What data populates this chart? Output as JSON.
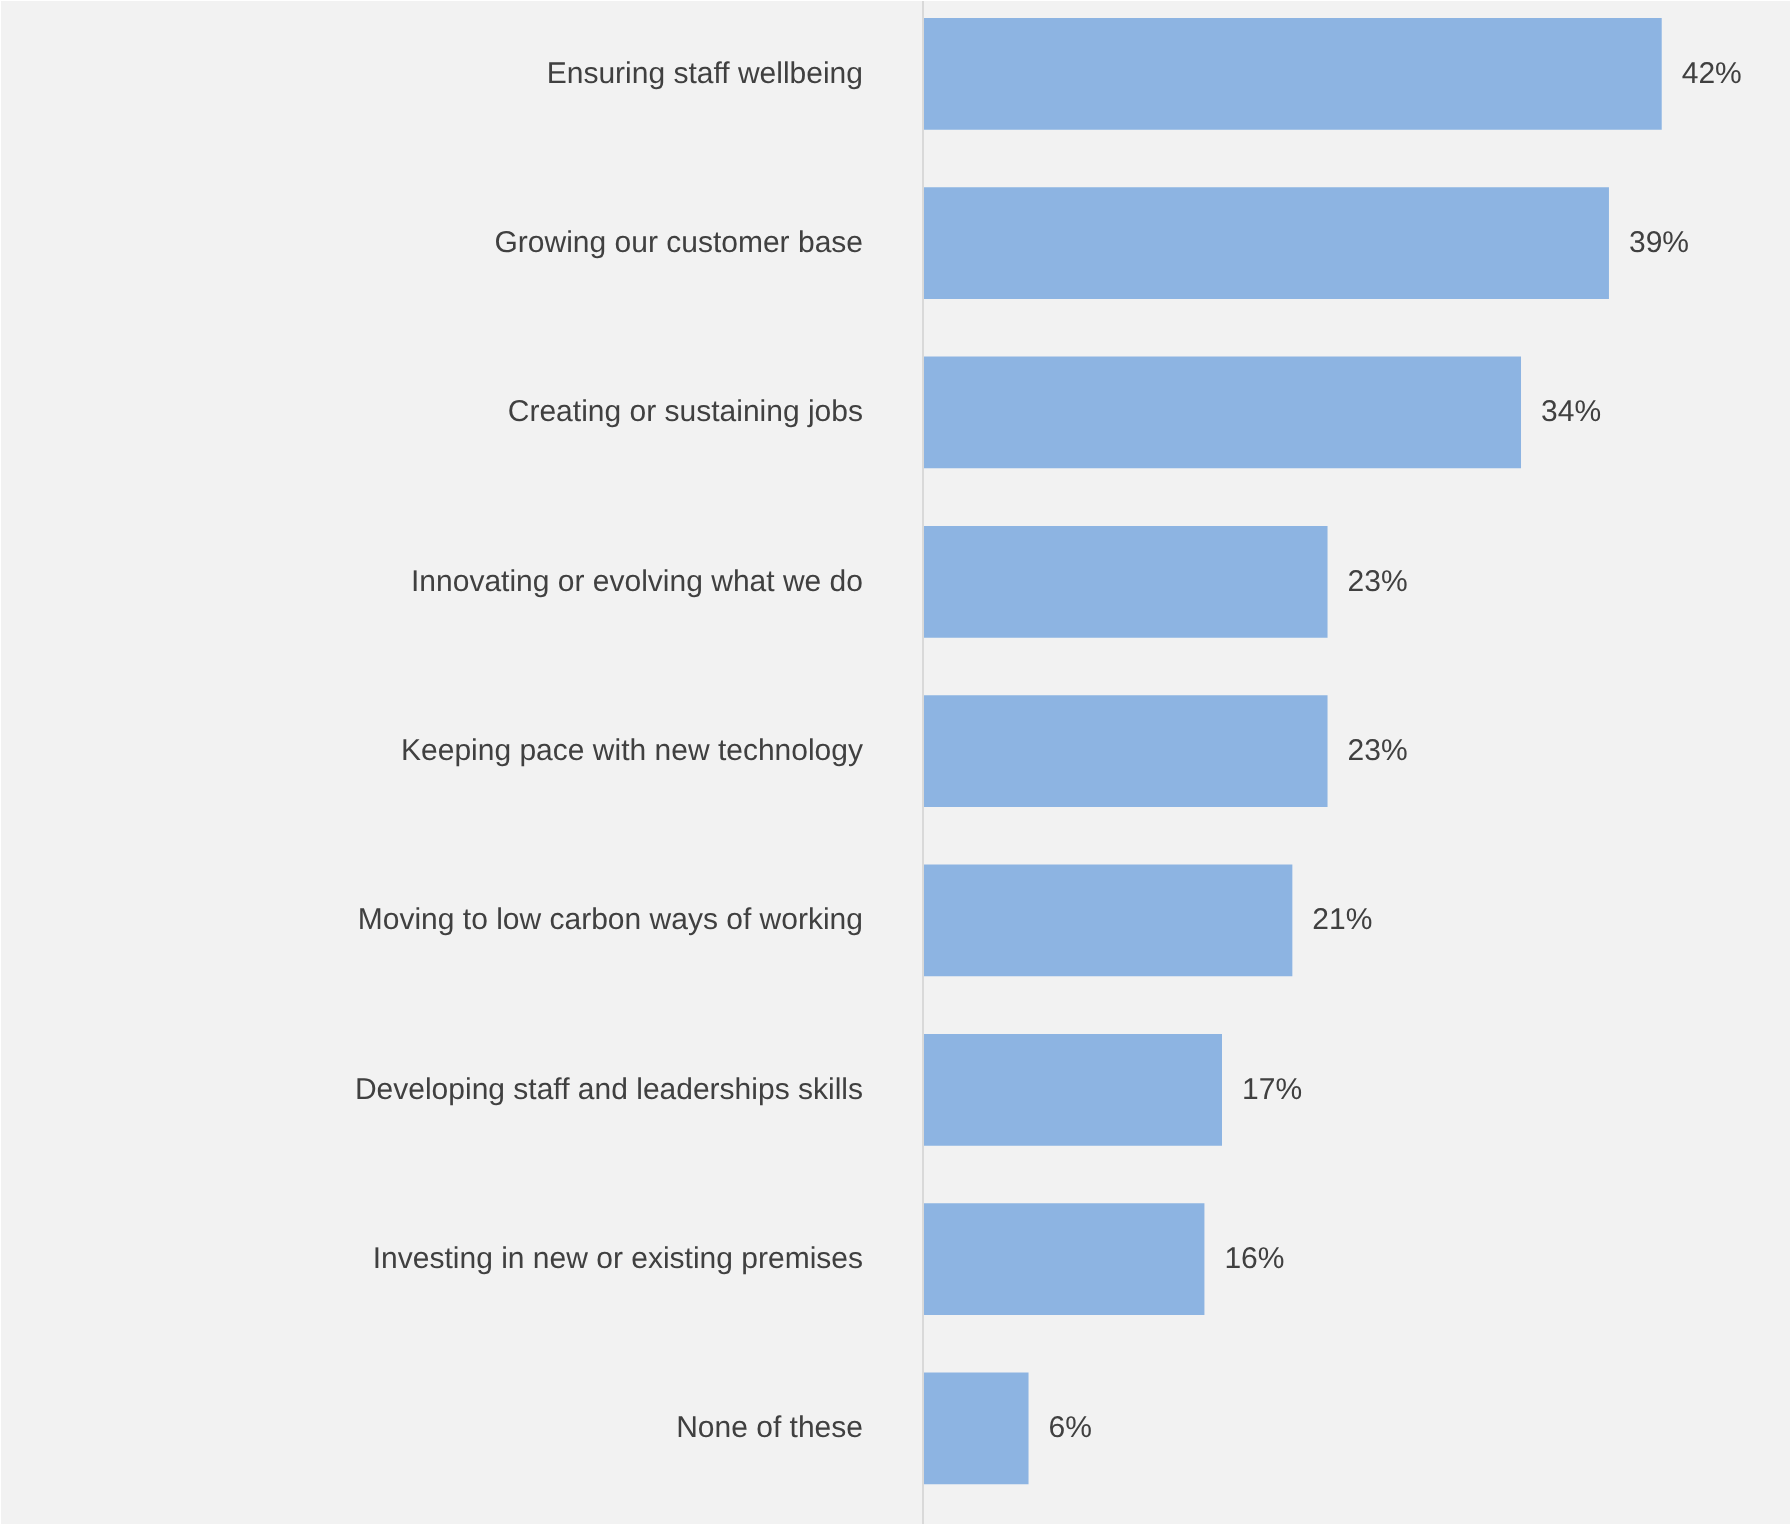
{
  "chart_data": {
    "type": "bar",
    "orientation": "horizontal",
    "categories": [
      "Ensuring staff wellbeing",
      "Growing our customer base",
      "Creating or sustaining jobs",
      "Innovating or evolving what we do",
      "Keeping pace with new technology",
      "Moving to low carbon ways of working",
      "Developing staff and leaderships skills",
      "Investing in new or existing premises",
      "None of these"
    ],
    "values": [
      42,
      39,
      34,
      23,
      23,
      21,
      17,
      16,
      6
    ],
    "value_labels": [
      "42%",
      "39%",
      "34%",
      "23%",
      "23%",
      "21%",
      "17%",
      "16%",
      "6%"
    ],
    "color": "#8db4e2"
  }
}
